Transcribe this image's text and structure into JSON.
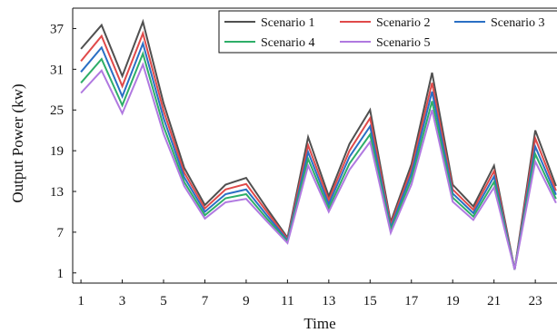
{
  "chart_data": {
    "type": "line",
    "xlabel": "Time",
    "ylabel": "Output Power (kw)",
    "x": [
      1,
      2,
      3,
      4,
      5,
      6,
      7,
      8,
      9,
      10,
      11,
      12,
      13,
      14,
      15,
      16,
      17,
      18,
      19,
      20,
      21,
      22,
      23,
      24
    ],
    "xticks": [
      "1",
      "3",
      "5",
      "7",
      "9",
      "11",
      "13",
      "15",
      "17",
      "19",
      "21",
      "23"
    ],
    "yticks": [
      "1",
      "7",
      "13",
      "19",
      "25",
      "31",
      "37"
    ],
    "xlim": [
      0.6,
      24.05
    ],
    "ylim": [
      -0.5,
      40
    ],
    "grid": false,
    "legend_position": "top-right",
    "series": [
      {
        "name": "Scenario 1",
        "color": "#505050",
        "values": [
          34.0,
          37.5,
          30.0,
          38.0,
          26.0,
          16.5,
          11.0,
          14.0,
          15.0,
          10.5,
          6.2,
          21.0,
          12.3,
          20.0,
          25.0,
          8.5,
          17.0,
          30.5,
          14.0,
          10.8,
          16.8,
          1.5,
          22.0,
          13.8
        ]
      },
      {
        "name": "Scenario 2",
        "color": "#e04a4a",
        "values": [
          32.2,
          35.9,
          28.5,
          36.3,
          24.9,
          15.8,
          10.5,
          13.3,
          14.1,
          10.0,
          6.0,
          19.8,
          11.7,
          19.0,
          23.8,
          8.1,
          16.3,
          29.0,
          13.3,
          10.3,
          16.0,
          1.5,
          20.8,
          13.1
        ]
      },
      {
        "name": "Scenario 3",
        "color": "#2a6fc4",
        "values": [
          30.6,
          34.2,
          27.0,
          34.8,
          23.8,
          15.1,
          10.0,
          12.6,
          13.3,
          9.5,
          5.8,
          18.8,
          11.1,
          18.1,
          22.6,
          7.7,
          15.6,
          27.7,
          12.7,
          9.8,
          15.2,
          1.5,
          19.6,
          12.5
        ]
      },
      {
        "name": "Scenario 4",
        "color": "#2eae68",
        "values": [
          29.0,
          32.5,
          25.7,
          33.3,
          22.6,
          14.4,
          9.5,
          12.0,
          12.6,
          9.0,
          5.6,
          17.8,
          10.5,
          17.1,
          21.4,
          7.3,
          14.8,
          26.3,
          12.1,
          9.3,
          14.4,
          1.5,
          18.5,
          11.9
        ]
      },
      {
        "name": "Scenario 5",
        "color": "#b079e0",
        "values": [
          27.5,
          30.8,
          24.5,
          31.7,
          21.5,
          13.8,
          9.0,
          11.4,
          11.9,
          8.6,
          5.4,
          16.8,
          10.0,
          16.2,
          20.3,
          6.9,
          14.0,
          25.0,
          11.5,
          8.8,
          13.6,
          1.5,
          17.4,
          11.3
        ]
      }
    ]
  }
}
